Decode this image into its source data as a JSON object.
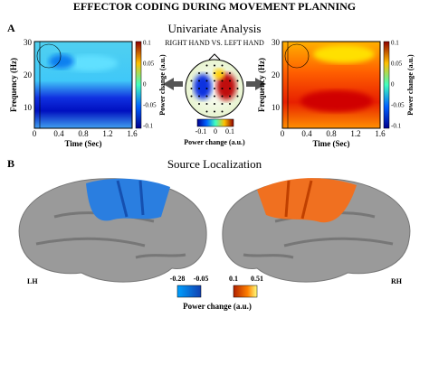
{
  "title": "EFFECTOR CODING DURING MOVEMENT PLANNING",
  "panel_a": {
    "label": "A",
    "title": "Univariate Analysis",
    "contrast": "RIGHT HAND VS. LEFT HAND",
    "heatmaps": [
      {
        "y_label": "Frequency (Hz)",
        "x_label": "Time (Sec)",
        "yticks": [
          30,
          20,
          10
        ],
        "xticks": [
          0,
          0.4,
          0.8,
          1.2,
          1.6
        ],
        "colorbar_ticks": [
          0.1,
          0.05,
          0,
          -0.05,
          -0.1
        ],
        "colorbar_label": "Power change (a.u.)"
      },
      {
        "y_label": "Frequency (Hz)",
        "x_label": "Time (Sec)",
        "yticks": [
          30,
          20,
          10
        ],
        "xticks": [
          0,
          0.4,
          0.8,
          1.2,
          1.6
        ],
        "colorbar_ticks": [
          0.1,
          0.05,
          0,
          -0.05,
          -0.1
        ],
        "colorbar_label": "Power change (a.u.)"
      }
    ],
    "topo_colorbar": {
      "ticks": [
        -0.1,
        0,
        0.1
      ],
      "label": "Power change (a.u.)"
    }
  },
  "panel_b": {
    "label": "B",
    "title": "Source Localization",
    "left_label": "LH",
    "right_label": "RH",
    "colorbars": [
      {
        "ticks": [
          -0.28,
          -0.05
        ]
      },
      {
        "ticks": [
          0.1,
          0.51
        ]
      }
    ],
    "colorbar_label": "Power change (a.u.)"
  }
}
